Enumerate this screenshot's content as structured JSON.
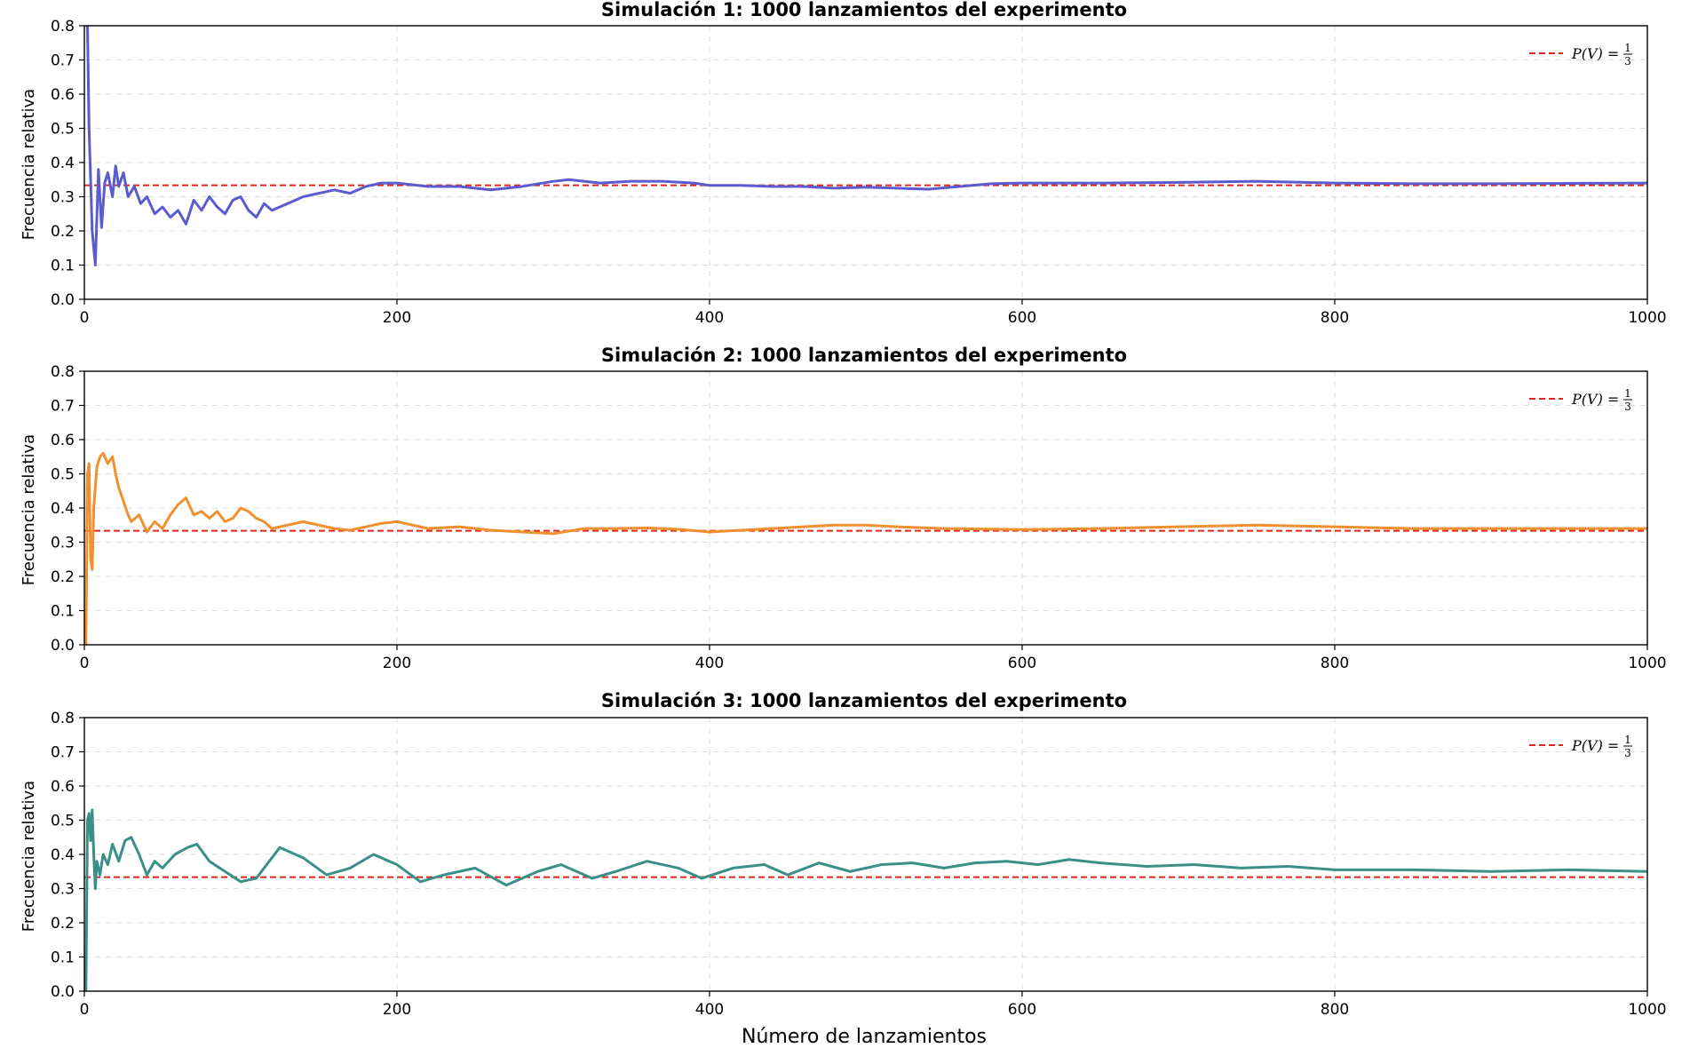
{
  "chart_data": [
    {
      "type": "line",
      "title": "Simulación 1: 1000 lanzamientos del experimento",
      "xlabel": "",
      "ylabel": "Frecuencia relativa",
      "xlim": [
        0,
        1000
      ],
      "ylim": [
        0,
        0.8
      ],
      "xticks": [
        0,
        200,
        400,
        600,
        800,
        1000
      ],
      "yticks": [
        0.0,
        0.1,
        0.2,
        0.3,
        0.4,
        0.5,
        0.6,
        0.7,
        0.8
      ],
      "grid": true,
      "legend": "top-right",
      "reference": {
        "label": "P(V) = ",
        "frac_num": "1",
        "frac_den": "3",
        "value": 0.3333,
        "color": "#e0261c"
      },
      "series": [
        {
          "color": "#5b5bcf",
          "x": [
            1,
            2,
            3,
            5,
            7,
            9,
            11,
            13,
            15,
            18,
            20,
            22,
            25,
            28,
            32,
            36,
            40,
            45,
            50,
            55,
            60,
            65,
            70,
            75,
            80,
            85,
            90,
            95,
            100,
            105,
            110,
            115,
            120,
            130,
            140,
            150,
            160,
            170,
            180,
            190,
            200,
            220,
            240,
            260,
            280,
            300,
            310,
            330,
            350,
            370,
            390,
            400,
            420,
            440,
            460,
            480,
            500,
            520,
            540,
            560,
            580,
            600,
            650,
            700,
            750,
            800,
            850,
            900,
            950,
            1000
          ],
          "y": [
            0.8,
            0.8,
            0.5,
            0.2,
            0.1,
            0.38,
            0.21,
            0.34,
            0.37,
            0.3,
            0.39,
            0.33,
            0.37,
            0.3,
            0.33,
            0.28,
            0.3,
            0.25,
            0.27,
            0.24,
            0.26,
            0.22,
            0.29,
            0.26,
            0.3,
            0.27,
            0.25,
            0.29,
            0.3,
            0.26,
            0.24,
            0.28,
            0.26,
            0.28,
            0.3,
            0.31,
            0.32,
            0.31,
            0.33,
            0.34,
            0.34,
            0.33,
            0.33,
            0.32,
            0.33,
            0.345,
            0.35,
            0.34,
            0.345,
            0.345,
            0.34,
            0.333,
            0.333,
            0.33,
            0.33,
            0.325,
            0.328,
            0.325,
            0.322,
            0.33,
            0.338,
            0.34,
            0.34,
            0.342,
            0.345,
            0.34,
            0.338,
            0.338,
            0.339,
            0.34
          ]
        }
      ]
    },
    {
      "type": "line",
      "title": "Simulación 2: 1000 lanzamientos del experimento",
      "xlabel": "",
      "ylabel": "Frecuencia relativa",
      "xlim": [
        0,
        1000
      ],
      "ylim": [
        0,
        0.8
      ],
      "xticks": [
        0,
        200,
        400,
        600,
        800,
        1000
      ],
      "yticks": [
        0.0,
        0.1,
        0.2,
        0.3,
        0.4,
        0.5,
        0.6,
        0.7,
        0.8
      ],
      "grid": true,
      "legend": "top-right",
      "reference": {
        "label": "P(V) = ",
        "frac_num": "1",
        "frac_den": "3",
        "value": 0.3333,
        "color": "#e0261c"
      },
      "series": [
        {
          "color": "#f0902f",
          "x": [
            1,
            2,
            3,
            4,
            5,
            6,
            8,
            10,
            12,
            15,
            18,
            20,
            22,
            25,
            28,
            30,
            35,
            40,
            45,
            50,
            55,
            60,
            65,
            70,
            75,
            80,
            85,
            90,
            95,
            100,
            105,
            110,
            115,
            120,
            130,
            140,
            150,
            160,
            170,
            180,
            190,
            200,
            220,
            240,
            260,
            280,
            300,
            320,
            340,
            360,
            380,
            400,
            420,
            440,
            460,
            480,
            500,
            520,
            550,
            600,
            650,
            700,
            750,
            800,
            850,
            900,
            950,
            1000
          ],
          "y": [
            0.0,
            0.5,
            0.53,
            0.25,
            0.22,
            0.4,
            0.52,
            0.55,
            0.56,
            0.53,
            0.55,
            0.5,
            0.46,
            0.42,
            0.38,
            0.36,
            0.38,
            0.33,
            0.36,
            0.34,
            0.38,
            0.41,
            0.43,
            0.38,
            0.39,
            0.37,
            0.39,
            0.36,
            0.37,
            0.4,
            0.39,
            0.37,
            0.36,
            0.34,
            0.35,
            0.36,
            0.35,
            0.34,
            0.335,
            0.345,
            0.355,
            0.36,
            0.34,
            0.345,
            0.335,
            0.33,
            0.325,
            0.34,
            0.34,
            0.342,
            0.338,
            0.33,
            0.335,
            0.34,
            0.345,
            0.35,
            0.35,
            0.345,
            0.34,
            0.337,
            0.34,
            0.345,
            0.35,
            0.345,
            0.34,
            0.34,
            0.34,
            0.34
          ]
        }
      ]
    },
    {
      "type": "line",
      "title": "Simulación 3: 1000 lanzamientos del experimento",
      "xlabel": "Número de lanzamientos",
      "ylabel": "Frecuencia relativa",
      "xlim": [
        0,
        1000
      ],
      "ylim": [
        0,
        0.8
      ],
      "xticks": [
        0,
        200,
        400,
        600,
        800,
        1000
      ],
      "yticks": [
        0.0,
        0.1,
        0.2,
        0.3,
        0.4,
        0.5,
        0.6,
        0.7,
        0.8
      ],
      "grid": true,
      "legend": "top-right",
      "reference": {
        "label": "P(V) = ",
        "frac_num": "1",
        "frac_den": "3",
        "value": 0.3333,
        "color": "#e0261c"
      },
      "series": [
        {
          "color": "#3a9086",
          "x": [
            1,
            2,
            3,
            4,
            5,
            6,
            7,
            8,
            10,
            12,
            15,
            18,
            22,
            26,
            30,
            35,
            40,
            45,
            50,
            58,
            66,
            72,
            80,
            90,
            100,
            110,
            125,
            140,
            155,
            170,
            185,
            200,
            215,
            230,
            250,
            270,
            290,
            305,
            325,
            340,
            360,
            380,
            395,
            415,
            435,
            450,
            470,
            490,
            510,
            530,
            550,
            570,
            590,
            610,
            630,
            650,
            680,
            710,
            740,
            770,
            800,
            850,
            900,
            950,
            1000
          ],
          "y": [
            0.0,
            0.5,
            0.52,
            0.44,
            0.53,
            0.4,
            0.3,
            0.38,
            0.34,
            0.4,
            0.37,
            0.43,
            0.38,
            0.44,
            0.45,
            0.4,
            0.34,
            0.38,
            0.36,
            0.4,
            0.42,
            0.43,
            0.38,
            0.35,
            0.32,
            0.33,
            0.42,
            0.39,
            0.34,
            0.36,
            0.4,
            0.37,
            0.32,
            0.34,
            0.36,
            0.31,
            0.35,
            0.37,
            0.33,
            0.35,
            0.38,
            0.36,
            0.33,
            0.36,
            0.37,
            0.34,
            0.375,
            0.35,
            0.37,
            0.375,
            0.36,
            0.375,
            0.38,
            0.37,
            0.385,
            0.375,
            0.365,
            0.37,
            0.36,
            0.365,
            0.355,
            0.355,
            0.35,
            0.355,
            0.35
          ]
        }
      ]
    }
  ]
}
